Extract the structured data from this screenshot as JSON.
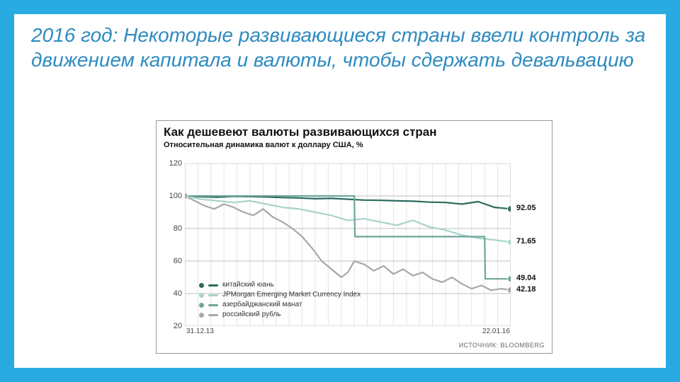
{
  "slide": {
    "title": "2016 год: Некоторые развивающиеся страны ввели контроль за движением капитала и валюты, чтобы сдержать девальвацию",
    "title_color": "#2e8bc0",
    "title_fontsize": 28,
    "background_color": "#29abe2",
    "inner_background": "#ffffff"
  },
  "chart": {
    "type": "line",
    "title": "Как дешевеют валюты развивающихся стран",
    "subtitle": "Относительная динамика валют к доллару США, %",
    "title_fontsize": 17,
    "subtitle_fontsize": 11,
    "border_color": "#999999",
    "background_color": "#ffffff",
    "grid_color": "#bfbfbf",
    "grid_minor_color": "#e5e5e5",
    "ylim": [
      20,
      120
    ],
    "yticks": [
      20,
      40,
      60,
      80,
      100,
      120
    ],
    "x_domain": [
      0,
      100
    ],
    "x_grid_count": 25,
    "xlabels": {
      "left": "31.12.13",
      "right": "22.01.16"
    },
    "source_label": "ИСТОЧНИК: BLOOMBERG",
    "series": [
      {
        "name": "китайский юань",
        "color": "#2b6b5f",
        "end_value": 92.05,
        "line_width": 2.2,
        "marker_radius": 4.5,
        "data": [
          [
            0,
            100
          ],
          [
            5,
            99.5
          ],
          [
            10,
            99.2
          ],
          [
            15,
            99.8
          ],
          [
            20,
            99.6
          ],
          [
            25,
            99.4
          ],
          [
            30,
            99.0
          ],
          [
            35,
            98.8
          ],
          [
            40,
            98.3
          ],
          [
            45,
            98.5
          ],
          [
            50,
            98.0
          ],
          [
            55,
            97.5
          ],
          [
            60,
            97.3
          ],
          [
            65,
            97.0
          ],
          [
            70,
            96.8
          ],
          [
            75,
            96.2
          ],
          [
            80,
            96.0
          ],
          [
            85,
            95.0
          ],
          [
            90,
            96.5
          ],
          [
            95,
            93.0
          ],
          [
            100,
            92.05
          ]
        ]
      },
      {
        "name": "JPMorgan Emerging Market Currency Index",
        "color": "#a7d3cb",
        "end_value": 71.65,
        "line_width": 2.2,
        "marker_radius": 4.5,
        "data": [
          [
            0,
            100
          ],
          [
            5,
            98
          ],
          [
            10,
            97
          ],
          [
            15,
            96
          ],
          [
            20,
            97
          ],
          [
            25,
            95
          ],
          [
            30,
            93
          ],
          [
            35,
            92
          ],
          [
            40,
            90
          ],
          [
            45,
            88
          ],
          [
            50,
            85
          ],
          [
            55,
            86
          ],
          [
            60,
            84
          ],
          [
            65,
            82
          ],
          [
            70,
            85
          ],
          [
            75,
            81
          ],
          [
            80,
            79
          ],
          [
            85,
            76
          ],
          [
            90,
            74
          ],
          [
            95,
            73
          ],
          [
            100,
            71.65
          ]
        ]
      },
      {
        "name": "азербайджанский манат",
        "color": "#6fa59a",
        "end_value": 49.04,
        "line_width": 2.2,
        "marker_radius": 4.5,
        "data": [
          [
            0,
            100
          ],
          [
            5,
            100
          ],
          [
            10,
            100
          ],
          [
            15,
            100
          ],
          [
            20,
            100
          ],
          [
            25,
            100
          ],
          [
            30,
            100
          ],
          [
            35,
            100
          ],
          [
            40,
            100
          ],
          [
            45,
            100
          ],
          [
            50,
            100
          ],
          [
            52,
            100
          ],
          [
            52.2,
            75
          ],
          [
            55,
            75
          ],
          [
            60,
            75
          ],
          [
            65,
            75
          ],
          [
            70,
            75
          ],
          [
            75,
            75
          ],
          [
            80,
            75
          ],
          [
            85,
            75
          ],
          [
            90,
            75
          ],
          [
            92,
            75
          ],
          [
            92.2,
            49.04
          ],
          [
            95,
            49.04
          ],
          [
            100,
            49.04
          ]
        ]
      },
      {
        "name": "российский рубль",
        "color": "#a8a8a8",
        "end_value": 42.18,
        "line_width": 2.2,
        "marker_radius": 4.5,
        "data": [
          [
            0,
            100
          ],
          [
            3,
            97
          ],
          [
            6,
            94
          ],
          [
            9,
            92
          ],
          [
            12,
            95
          ],
          [
            15,
            93
          ],
          [
            18,
            90
          ],
          [
            21,
            88
          ],
          [
            24,
            92
          ],
          [
            27,
            87
          ],
          [
            30,
            84
          ],
          [
            33,
            80
          ],
          [
            36,
            75
          ],
          [
            39,
            68
          ],
          [
            42,
            60
          ],
          [
            45,
            55
          ],
          [
            48,
            50
          ],
          [
            50,
            53
          ],
          [
            52,
            60
          ],
          [
            55,
            58
          ],
          [
            58,
            54
          ],
          [
            61,
            57
          ],
          [
            64,
            52
          ],
          [
            67,
            55
          ],
          [
            70,
            51
          ],
          [
            73,
            53
          ],
          [
            76,
            49
          ],
          [
            79,
            47
          ],
          [
            82,
            50
          ],
          [
            85,
            46
          ],
          [
            88,
            43
          ],
          [
            91,
            45
          ],
          [
            94,
            42
          ],
          [
            97,
            43
          ],
          [
            100,
            42.18
          ]
        ]
      }
    ],
    "legend": {
      "position": "bottom-left",
      "fontsize": 10
    }
  }
}
